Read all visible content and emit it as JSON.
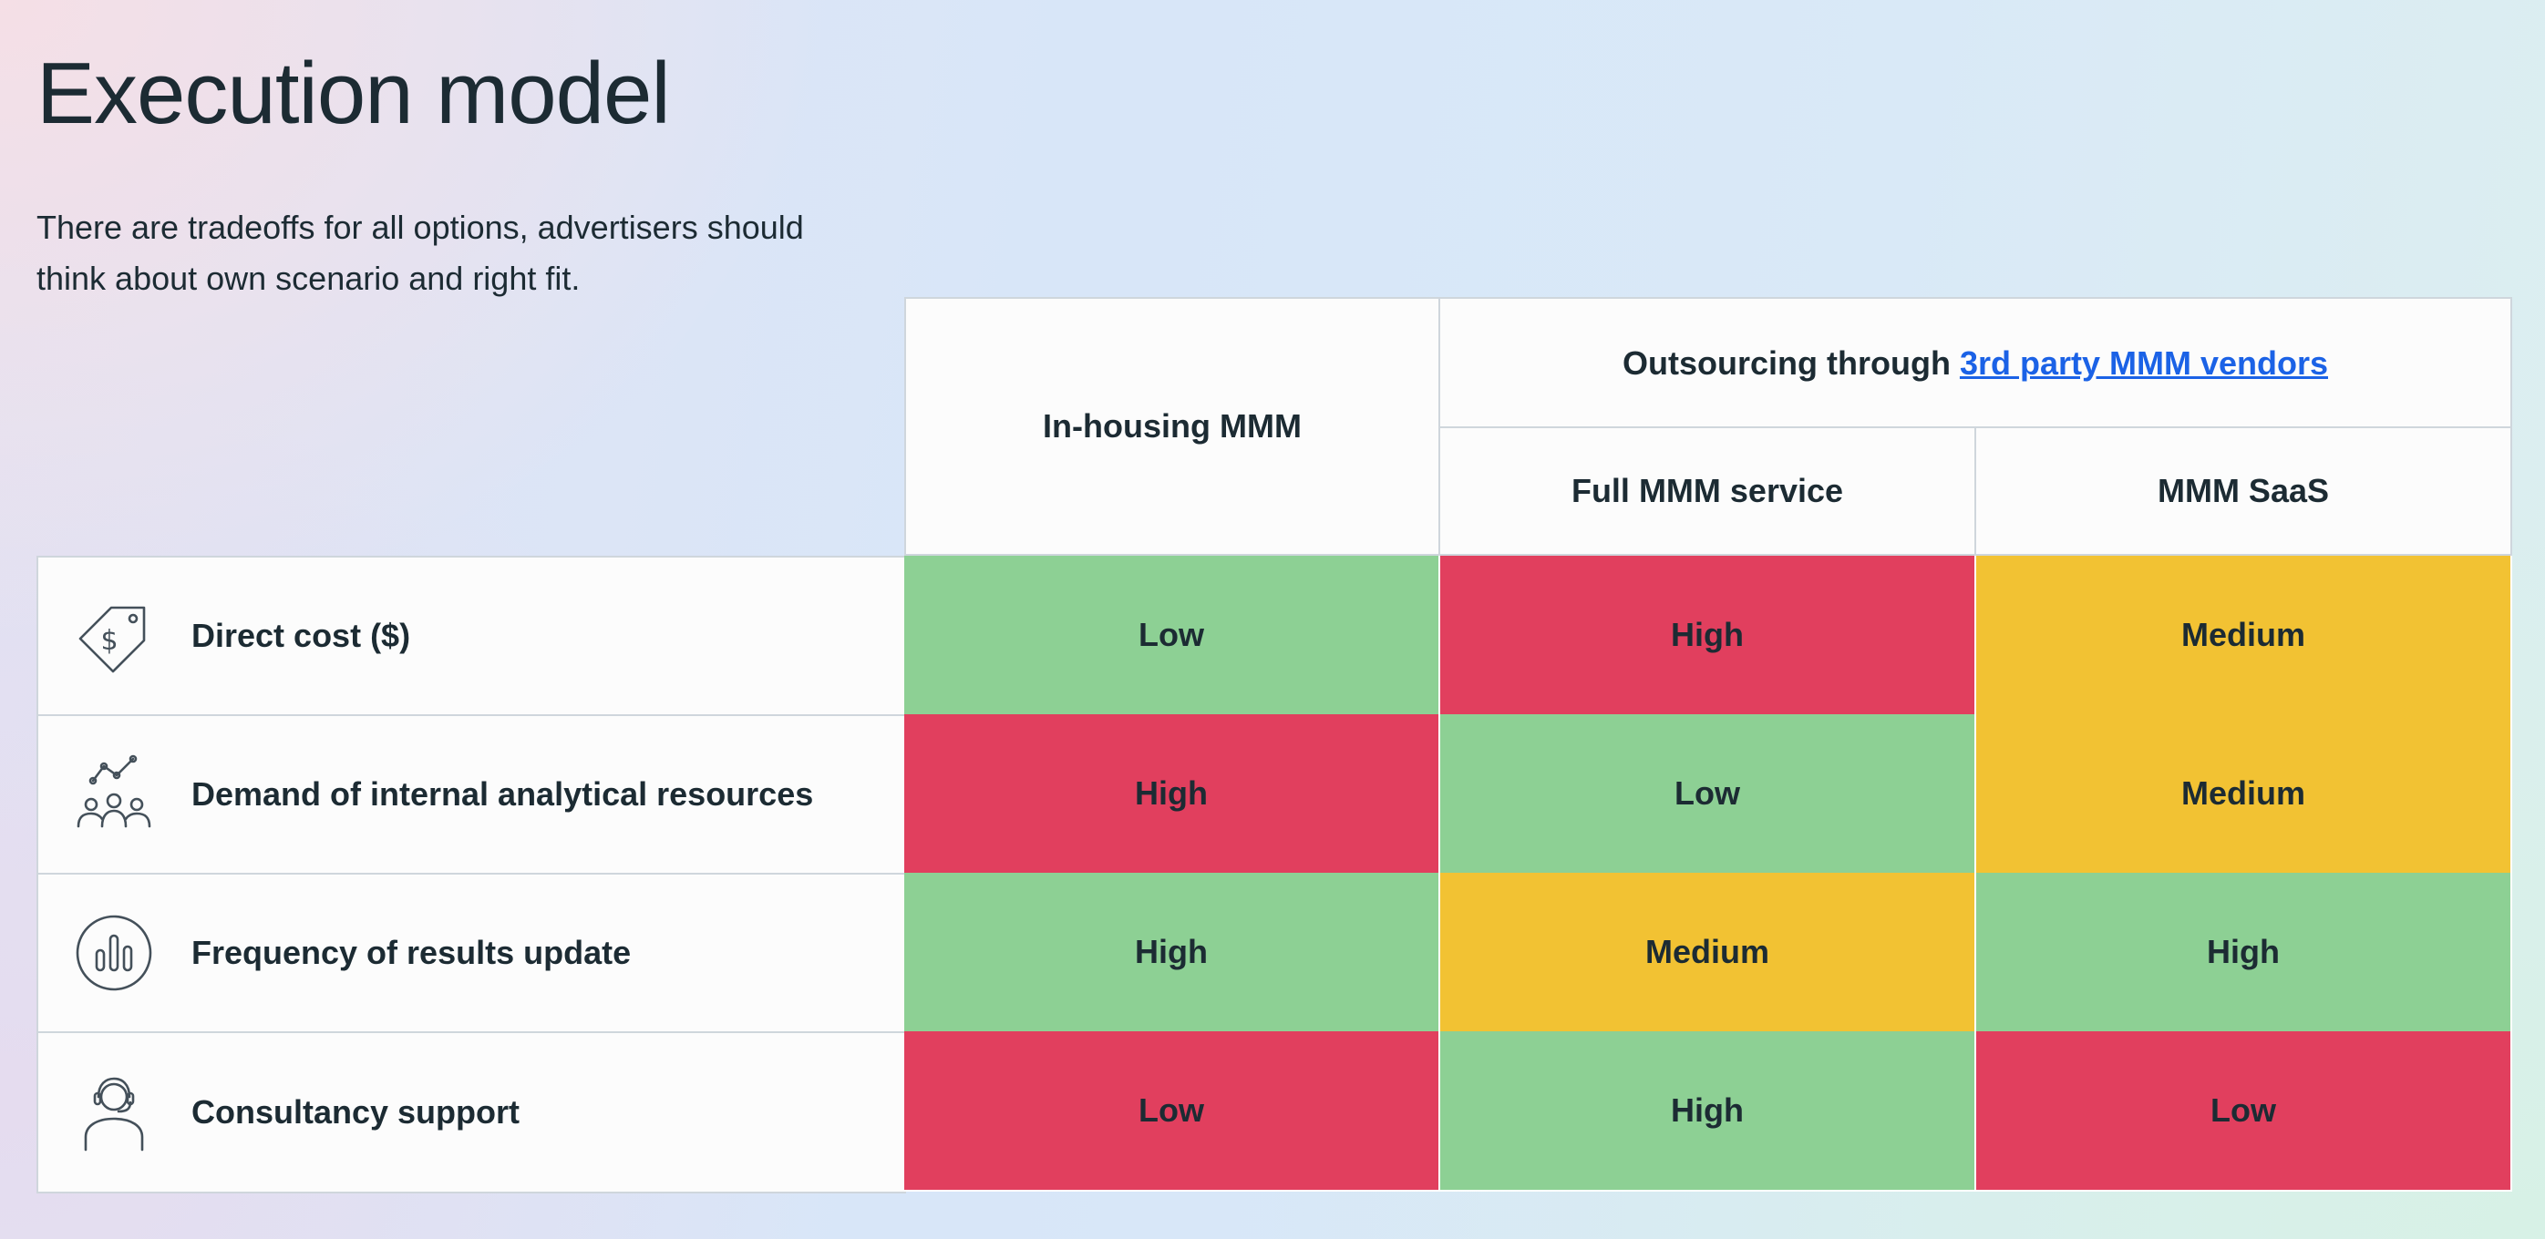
{
  "page": {
    "title": "Execution model",
    "subtitle": "There are tradeoffs for all options, advertisers should think about own scenario and right fit."
  },
  "table": {
    "header": {
      "inhousing": "In-housing MMM",
      "outsourcing_prefix": "Outsourcing through ",
      "outsourcing_link": "3rd party MMM vendors",
      "full_service": "Full MMM service",
      "saas": "MMM SaaS"
    },
    "rows": [
      {
        "label": "Direct cost ($)",
        "icon": "price-tag-icon",
        "values": [
          "Low",
          "High",
          "Medium"
        ],
        "colors": [
          "green",
          "red",
          "yellow"
        ]
      },
      {
        "label": "Demand of internal analytical resources",
        "icon": "team-analytics-icon",
        "values": [
          "High",
          "Low",
          "Medium"
        ],
        "colors": [
          "red",
          "green",
          "yellow"
        ]
      },
      {
        "label": "Frequency of results update",
        "icon": "bar-chart-circle-icon",
        "values": [
          "High",
          "Medium",
          "High"
        ],
        "colors": [
          "green",
          "yellow",
          "green"
        ]
      },
      {
        "label": "Consultancy support",
        "icon": "headset-person-icon",
        "values": [
          "Low",
          "High",
          "Low"
        ],
        "colors": [
          "red",
          "green",
          "red"
        ]
      }
    ]
  },
  "colors": {
    "green": "#8dd094",
    "red": "#e13f5e",
    "yellow": "#f2c233",
    "link": "#1b62e6",
    "text": "#1c2b33"
  }
}
